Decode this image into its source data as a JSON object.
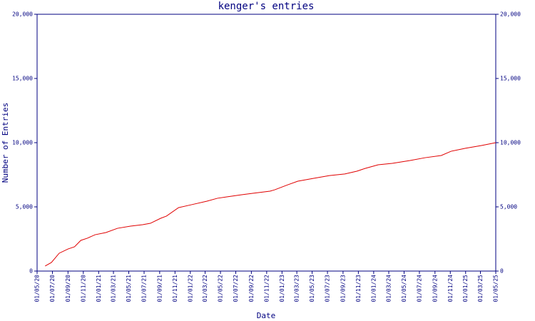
{
  "chart_data": {
    "type": "line",
    "title": "kenger's entries",
    "x_label": "Date",
    "y_label": "Number of Entries",
    "x": [
      "2020-06-02",
      "2020-06-27",
      "2020-07-28",
      "2020-09-01",
      "2020-09-27",
      "2020-10-22",
      "2020-11-17",
      "2020-12-18",
      "2021-01-30",
      "2021-03-17",
      "2021-05-08",
      "2021-06-25",
      "2021-07-26",
      "2021-09-05",
      "2021-09-28",
      "2021-11-15",
      "2022-01-06",
      "2022-03-07",
      "2022-04-19",
      "2022-05-26",
      "2022-07-22",
      "2022-09-09",
      "2022-11-14",
      "2022-12-03",
      "2023-01-24",
      "2023-03-05",
      "2023-05-07",
      "2023-07-09",
      "2023-09-08",
      "2023-10-26",
      "2023-11-29",
      "2024-01-19",
      "2024-03-15",
      "2024-05-25",
      "2024-07-24",
      "2024-09-26",
      "2024-11-04",
      "2024-12-31",
      "2025-03-05",
      "2025-05-01"
    ],
    "series": [
      {
        "name": "Entries",
        "color": "#e00000",
        "values": [
          390,
          670,
          1390,
          1720,
          1890,
          2390,
          2560,
          2830,
          3000,
          3330,
          3500,
          3610,
          3720,
          4110,
          4280,
          4940,
          5170,
          5440,
          5670,
          5780,
          5940,
          6060,
          6220,
          6330,
          6720,
          7000,
          7220,
          7440,
          7560,
          7780,
          8000,
          8280,
          8390,
          8610,
          8830,
          9000,
          9330,
          9560,
          9780,
          10000
        ]
      }
    ],
    "xlim": [
      "2020-05-01",
      "2025-05-01"
    ],
    "xticks": [
      {
        "value": "2020-05-01",
        "label": "01/05/20"
      },
      {
        "value": "2020-07-01",
        "label": "01/07/20"
      },
      {
        "value": "2020-09-01",
        "label": "01/09/20"
      },
      {
        "value": "2020-11-01",
        "label": "01/11/20"
      },
      {
        "value": "2021-01-01",
        "label": "01/01/21"
      },
      {
        "value": "2021-03-01",
        "label": "01/03/21"
      },
      {
        "value": "2021-05-01",
        "label": "01/05/21"
      },
      {
        "value": "2021-07-01",
        "label": "01/07/21"
      },
      {
        "value": "2021-09-01",
        "label": "01/09/21"
      },
      {
        "value": "2021-11-01",
        "label": "01/11/21"
      },
      {
        "value": "2022-01-01",
        "label": "01/01/22"
      },
      {
        "value": "2022-03-01",
        "label": "01/03/22"
      },
      {
        "value": "2022-05-01",
        "label": "01/05/22"
      },
      {
        "value": "2022-07-01",
        "label": "01/07/22"
      },
      {
        "value": "2022-09-01",
        "label": "01/09/22"
      },
      {
        "value": "2022-11-01",
        "label": "01/11/22"
      },
      {
        "value": "2023-01-01",
        "label": "01/01/23"
      },
      {
        "value": "2023-03-01",
        "label": "01/03/23"
      },
      {
        "value": "2023-05-01",
        "label": "01/05/23"
      },
      {
        "value": "2023-07-01",
        "label": "01/07/23"
      },
      {
        "value": "2023-09-01",
        "label": "01/09/23"
      },
      {
        "value": "2023-11-01",
        "label": "01/11/23"
      },
      {
        "value": "2024-01-01",
        "label": "01/01/24"
      },
      {
        "value": "2024-03-01",
        "label": "01/03/24"
      },
      {
        "value": "2024-05-01",
        "label": "01/05/24"
      },
      {
        "value": "2024-07-01",
        "label": "01/07/24"
      },
      {
        "value": "2024-09-01",
        "label": "01/09/24"
      },
      {
        "value": "2024-11-01",
        "label": "01/11/24"
      },
      {
        "value": "2025-01-01",
        "label": "01/01/25"
      },
      {
        "value": "2025-03-01",
        "label": "01/03/25"
      },
      {
        "value": "2025-05-01",
        "label": "01/05/25"
      }
    ],
    "ylim": [
      0,
      20000
    ],
    "yticks": [
      0,
      {
        "value": 5000,
        "label": "5,000"
      },
      {
        "value": 10000,
        "label": "10,000"
      },
      {
        "value": 15000,
        "label": "15,000"
      },
      {
        "value": 20000,
        "label": "20,000"
      }
    ],
    "axis_color": "#000080"
  }
}
